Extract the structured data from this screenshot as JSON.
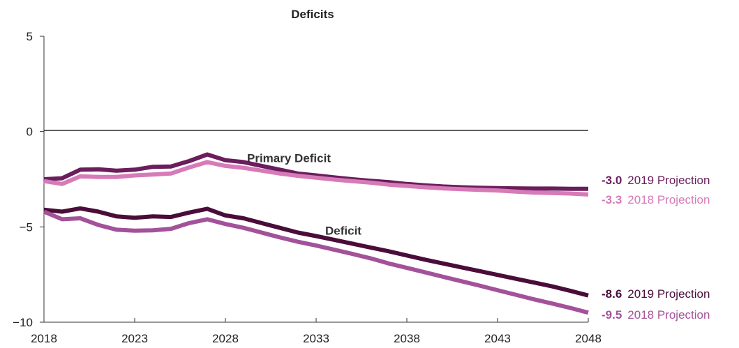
{
  "chart_data": {
    "type": "line",
    "title": "Deficits",
    "xlabel": "",
    "ylabel": "",
    "xlim": [
      2018,
      2048
    ],
    "ylim": [
      -10,
      5
    ],
    "x_ticks": [
      "2018",
      "2023",
      "2028",
      "2033",
      "2038",
      "2043",
      "2048"
    ],
    "y_ticks": [
      "5",
      "0",
      "−5",
      "−10"
    ],
    "grid": false,
    "x": [
      2018,
      2019,
      2020,
      2021,
      2022,
      2023,
      2024,
      2025,
      2026,
      2027,
      2028,
      2029,
      2030,
      2031,
      2032,
      2033,
      2034,
      2035,
      2036,
      2037,
      2038,
      2039,
      2040,
      2041,
      2042,
      2043,
      2044,
      2045,
      2046,
      2047,
      2048
    ],
    "series": [
      {
        "color": "#6b1d5c",
        "values": [
          -2.5,
          -2.45,
          -2.0,
          -1.98,
          -2.05,
          -2.0,
          -1.85,
          -1.83,
          -1.55,
          -1.2,
          -1.5,
          -1.6,
          -1.8,
          -2.0,
          -2.2,
          -2.3,
          -2.4,
          -2.5,
          -2.58,
          -2.65,
          -2.75,
          -2.82,
          -2.88,
          -2.92,
          -2.95,
          -2.97,
          -2.98,
          -2.99,
          -2.99,
          -3.0,
          -3.0
        ]
      },
      {
        "color": "#d77ab8",
        "values": [
          -2.6,
          -2.75,
          -2.35,
          -2.38,
          -2.38,
          -2.3,
          -2.25,
          -2.2,
          -1.88,
          -1.6,
          -1.8,
          -1.9,
          -2.05,
          -2.2,
          -2.32,
          -2.42,
          -2.52,
          -2.6,
          -2.68,
          -2.78,
          -2.85,
          -2.92,
          -2.98,
          -3.02,
          -3.06,
          -3.09,
          -3.15,
          -3.2,
          -3.22,
          -3.25,
          -3.3
        ]
      },
      {
        "color": "#4a0d3a",
        "values": [
          -4.1,
          -4.2,
          -4.03,
          -4.2,
          -4.45,
          -4.52,
          -4.45,
          -4.48,
          -4.25,
          -4.05,
          -4.4,
          -4.55,
          -4.8,
          -5.05,
          -5.3,
          -5.48,
          -5.68,
          -5.88,
          -6.08,
          -6.28,
          -6.5,
          -6.72,
          -6.92,
          -7.12,
          -7.32,
          -7.52,
          -7.72,
          -7.92,
          -8.12,
          -8.35,
          -8.6
        ]
      },
      {
        "color": "#a3529a",
        "values": [
          -4.2,
          -4.6,
          -4.55,
          -4.9,
          -5.15,
          -5.2,
          -5.18,
          -5.1,
          -4.8,
          -4.6,
          -4.85,
          -5.05,
          -5.3,
          -5.55,
          -5.78,
          -5.98,
          -6.2,
          -6.42,
          -6.65,
          -6.92,
          -7.15,
          -7.38,
          -7.62,
          -7.85,
          -8.08,
          -8.32,
          -8.56,
          -8.8,
          -9.02,
          -9.25,
          -9.5
        ]
      }
    ],
    "annotations": [
      {
        "text": "Primary Deficit",
        "x": 2031.5,
        "y": -1.6
      },
      {
        "text": "Deficit",
        "x": 2034.5,
        "y": -5.4
      }
    ],
    "end_labels": [
      {
        "value": "-3.0",
        "label": "2019 Projection",
        "color": "#6b1d5c"
      },
      {
        "value": "-3.3",
        "label": "2018 Projection",
        "color": "#d77ab8"
      },
      {
        "value": "-8.6",
        "label": "2019 Projection",
        "color": "#4a0d3a"
      },
      {
        "value": "-9.5",
        "label": "2018 Projection",
        "color": "#a3529a"
      }
    ]
  }
}
